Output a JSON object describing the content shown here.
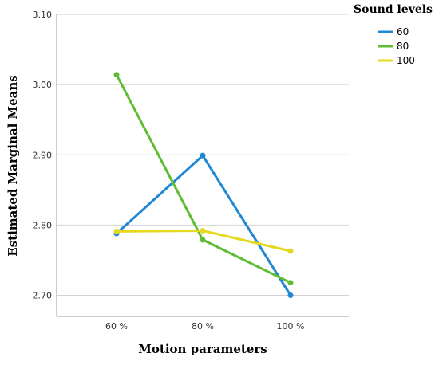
{
  "chart_data": {
    "type": "line",
    "xlabel": "Motion parameters",
    "ylabel": "Estimated Marginal Means",
    "categories": [
      "60 %",
      "80 %",
      "100 %"
    ],
    "yticks": [
      "2.70",
      "2.80",
      "2.90",
      "3.00",
      "3.10"
    ],
    "ylim": [
      2.67,
      3.1
    ],
    "grid": "horizontal",
    "legend": {
      "title": "Sound levels",
      "placement": "top-right"
    },
    "series": [
      {
        "name": "60",
        "color": "#1f88d4",
        "values": [
          2.788,
          2.899,
          2.7
        ]
      },
      {
        "name": "80",
        "color": "#5fbd33",
        "values": [
          3.014,
          2.779,
          2.718
        ]
      },
      {
        "name": "100",
        "color": "#e6d81f",
        "values": [
          2.791,
          2.792,
          2.763
        ]
      }
    ]
  }
}
